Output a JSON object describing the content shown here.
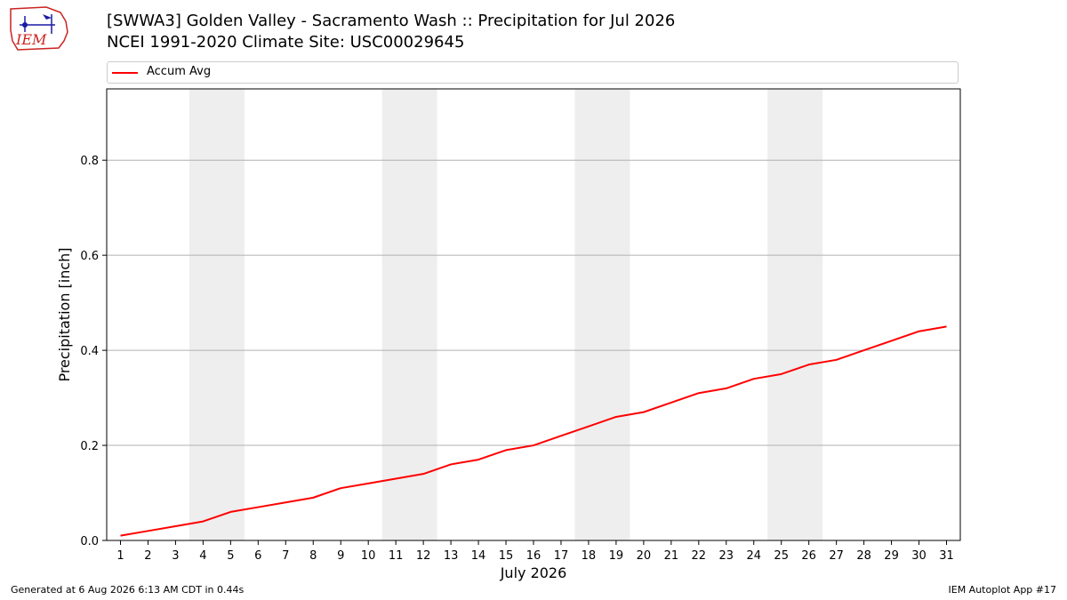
{
  "header": {
    "title_line1": "[SWWA3] Golden Valley - Sacramento Wash :: Precipitation for Jul 2026",
    "title_line2": "NCEI 1991-2020 Climate Site: USC00029645",
    "logo_text": "IEM"
  },
  "footer": {
    "generated": "Generated at 6 Aug 2026 6:13 AM CDT in 0.44s",
    "app": "IEM Autoplot App #17"
  },
  "colors": {
    "series": "#ff0000",
    "weekend_shade": "#eeeeee",
    "grid": "#b0b0b0",
    "logo_red": "#cc2222",
    "logo_blue": "#1a1aa6"
  },
  "chart_data": {
    "type": "line",
    "xlabel": "July 2026",
    "ylabel": "Precipitation [inch]",
    "xlim": [
      0.5,
      31.5
    ],
    "ylim": [
      0,
      0.95
    ],
    "y_ticks": [
      "0.0",
      "0.2",
      "0.4",
      "0.6",
      "0.8"
    ],
    "y_tick_values": [
      0,
      0.2,
      0.4,
      0.6,
      0.8
    ],
    "x": [
      1,
      2,
      3,
      4,
      5,
      6,
      7,
      8,
      9,
      10,
      11,
      12,
      13,
      14,
      15,
      16,
      17,
      18,
      19,
      20,
      21,
      22,
      23,
      24,
      25,
      26,
      27,
      28,
      29,
      30,
      31
    ],
    "x_tick_labels": [
      "1",
      "2",
      "3",
      "4",
      "5",
      "6",
      "7",
      "8",
      "9",
      "10",
      "11",
      "12",
      "13",
      "14",
      "15",
      "16",
      "17",
      "18",
      "19",
      "20",
      "21",
      "22",
      "23",
      "24",
      "25",
      "26",
      "27",
      "28",
      "29",
      "30",
      "31"
    ],
    "series": [
      {
        "name": "Accum Avg",
        "values": [
          0.01,
          0.02,
          0.03,
          0.04,
          0.06,
          0.07,
          0.08,
          0.09,
          0.11,
          0.12,
          0.13,
          0.14,
          0.16,
          0.17,
          0.19,
          0.2,
          0.22,
          0.24,
          0.26,
          0.27,
          0.29,
          0.31,
          0.32,
          0.34,
          0.35,
          0.37,
          0.38,
          0.4,
          0.42,
          0.44,
          0.45
        ]
      }
    ],
    "weekend_days": [
      [
        4,
        5
      ],
      [
        11,
        12
      ],
      [
        18,
        19
      ],
      [
        25,
        26
      ]
    ],
    "grid": "horizontal",
    "legend_position": "top"
  }
}
